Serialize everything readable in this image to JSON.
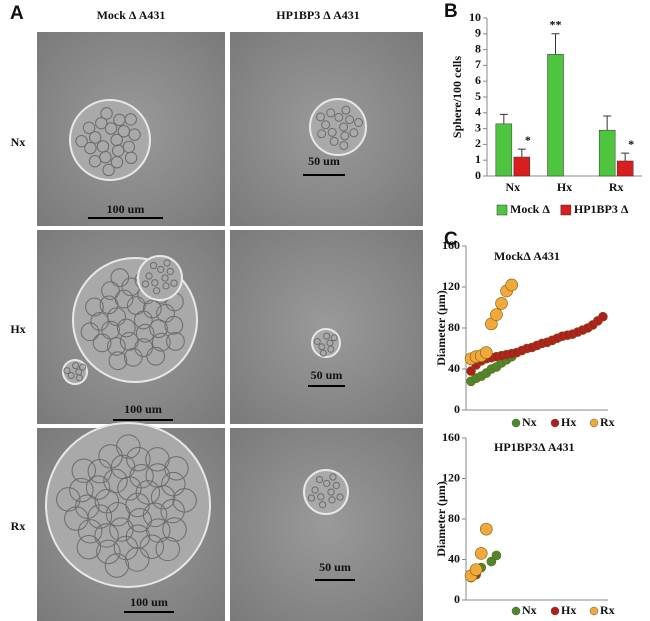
{
  "panel_a": {
    "label": "A",
    "columns": [
      "Mock Δ A431",
      "HP1BP3 Δ A431"
    ],
    "rows": [
      "Nx",
      "Hx",
      "Rx"
    ],
    "scale_bars": [
      [
        "100 um",
        "50 um"
      ],
      [
        "100 um",
        "50 um"
      ],
      [
        "100 um",
        "50 um"
      ]
    ]
  },
  "chart_data": [
    {
      "panel": "B",
      "type": "bar",
      "ylabel": "Sphere/100 cells",
      "categories": [
        "Nx",
        "Hx",
        "Rx"
      ],
      "ylim": [
        0,
        10
      ],
      "yticks": [
        0,
        1,
        2,
        3,
        4,
        5,
        6,
        7,
        8,
        9,
        10
      ],
      "legend": "bottom",
      "series": [
        {
          "name": "Mock Δ",
          "color": "#4fc43f",
          "values": [
            3.3,
            7.7,
            2.9
          ],
          "errors": [
            0.6,
            1.3,
            0.9
          ],
          "annotations": [
            null,
            "**",
            null
          ]
        },
        {
          "name": "HP1BP3 Δ",
          "color": "#d81e1e",
          "values": [
            1.2,
            null,
            0.95
          ],
          "errors": [
            0.5,
            null,
            0.5
          ],
          "annotations": [
            "*",
            null,
            "*"
          ]
        }
      ]
    },
    {
      "panel": "C",
      "type": "scatter",
      "title": "MockΔ A431",
      "ylabel": "Diameter (μm)",
      "xlim": [
        0,
        28
      ],
      "ylim": [
        0,
        160
      ],
      "yticks": [
        0,
        40,
        80,
        120,
        160
      ],
      "legend": "bottom",
      "series": [
        {
          "name": "Nx",
          "color": "#4a8a2c",
          "x": [
            1,
            2,
            3,
            4,
            5,
            6,
            7,
            8,
            9
          ],
          "values": [
            28,
            31,
            33,
            36,
            40,
            42,
            46,
            49,
            52
          ]
        },
        {
          "name": "Hx",
          "color": "#b01e1e",
          "x": [
            1,
            2,
            3,
            4,
            5,
            6,
            7,
            8,
            9,
            10,
            11,
            12,
            13,
            14,
            15,
            16,
            17,
            18,
            19,
            20,
            21,
            22,
            23,
            24,
            25,
            26,
            27
          ],
          "values": [
            38,
            44,
            48,
            50,
            51,
            52,
            53,
            54,
            55,
            56,
            58,
            60,
            61,
            63,
            65,
            66,
            68,
            70,
            72,
            73,
            74,
            76,
            78,
            80,
            83,
            87,
            91
          ]
        },
        {
          "name": "Rx",
          "color": "#f2a93b",
          "x": [
            1,
            2,
            3,
            4,
            5,
            6,
            7,
            8,
            9
          ],
          "values": [
            50,
            52,
            53,
            56,
            84,
            93,
            104,
            116,
            122
          ]
        }
      ]
    },
    {
      "type": "scatter",
      "title": "HP1BP3Δ A431",
      "ylabel": "Diameter (μm)",
      "xlim": [
        0,
        28
      ],
      "ylim": [
        0,
        160
      ],
      "yticks": [
        0,
        40,
        80,
        120,
        160
      ],
      "legend": "bottom",
      "series": [
        {
          "name": "Nx",
          "color": "#4a8a2c",
          "x": [
            2,
            3,
            5,
            6
          ],
          "values": [
            25,
            32,
            38,
            44
          ]
        },
        {
          "name": "Hx",
          "color": "#b01e1e",
          "x": [
            1,
            2
          ],
          "values": [
            22,
            26
          ]
        },
        {
          "name": "Rx",
          "color": "#f2a93b",
          "x": [
            1,
            2,
            3,
            4
          ],
          "values": [
            24,
            30,
            46,
            70
          ]
        }
      ]
    }
  ]
}
